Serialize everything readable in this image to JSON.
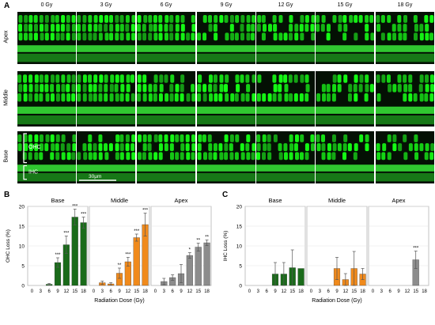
{
  "figure": {
    "panel_a_letter": "A",
    "panel_b_letter": "B",
    "panel_c_letter": "C",
    "dose_columns": [
      "0 Gy",
      "3 Gy",
      "6 Gy",
      "9 Gy",
      "12 Gy",
      "15 Gy",
      "18 Gy"
    ],
    "regions": [
      "Apex",
      "Middle",
      "Base"
    ],
    "ohc_label": "OHC",
    "ihc_label": "IHC",
    "scale_bar_label": "30μm",
    "colors": {
      "base": "#1a6b1a",
      "middle": "#f08a1c",
      "apex": "#8c8c8c",
      "micro_bright": "#38e838",
      "micro_dark": "#062006"
    }
  },
  "chart_data": [
    {
      "type": "bar",
      "panel": "B",
      "ylabel": "OHC Loss (%)",
      "xlabel": "Radiation Dose (Gy)",
      "ylim": [
        0,
        20
      ],
      "yticks": [
        0,
        5,
        10,
        15,
        20
      ],
      "categories": [
        "0",
        "3",
        "6",
        "9",
        "12",
        "15",
        "18"
      ],
      "series": [
        {
          "name": "Base",
          "color": "#1a6b1a",
          "values": [
            0,
            0,
            0.3,
            5.8,
            10.3,
            17.3,
            15.9
          ],
          "errors": [
            0,
            0,
            0.2,
            1.2,
            2.2,
            2.0,
            1.4
          ],
          "sig": [
            "",
            "",
            "",
            "***",
            "***",
            "***",
            "***"
          ]
        },
        {
          "name": "Middle",
          "color": "#f08a1c",
          "values": [
            0,
            0.7,
            0.4,
            3.1,
            6.0,
            12.1,
            15.4
          ],
          "errors": [
            0,
            0.4,
            0.3,
            1.3,
            1.1,
            0.9,
            2.9
          ],
          "sig": [
            "",
            "",
            "",
            "**",
            "***",
            "***",
            "***"
          ]
        },
        {
          "name": "Apex",
          "color": "#8c8c8c",
          "values": [
            0,
            1.0,
            2.0,
            3.0,
            7.6,
            9.7,
            10.8
          ],
          "errors": [
            0,
            0.8,
            0.7,
            2.3,
            0.7,
            1.0,
            0.7
          ],
          "sig": [
            "",
            "",
            "",
            "",
            "*",
            "**",
            "**"
          ]
        }
      ]
    },
    {
      "type": "bar",
      "panel": "C",
      "ylabel": "IHC Loss (%)",
      "xlabel": "Radiation Dose (Gy)",
      "ylim": [
        0,
        20
      ],
      "yticks": [
        0,
        5,
        10,
        15,
        20
      ],
      "categories": [
        "0",
        "3",
        "6",
        "9",
        "12",
        "15",
        "18"
      ],
      "series": [
        {
          "name": "Base",
          "color": "#1a6b1a",
          "values": [
            0,
            0,
            0,
            2.9,
            2.9,
            4.5,
            4.3
          ],
          "errors": [
            0,
            0,
            0,
            2.9,
            2.9,
            4.5,
            0
          ],
          "sig": [
            "",
            "",
            "",
            "",
            "",
            "",
            ""
          ]
        },
        {
          "name": "Middle",
          "color": "#f08a1c",
          "values": [
            0,
            0,
            0,
            4.3,
            1.5,
            4.3,
            2.9
          ],
          "errors": [
            0,
            0,
            0,
            2.8,
            1.5,
            4.3,
            1.4
          ],
          "sig": [
            "",
            "",
            "",
            "",
            "",
            "",
            ""
          ]
        },
        {
          "name": "Apex",
          "color": "#8c8c8c",
          "values": [
            0,
            0,
            0,
            0,
            0,
            6.5,
            0
          ],
          "errors": [
            0,
            0,
            0,
            0,
            0,
            2.2,
            0
          ],
          "sig": [
            "",
            "",
            "",
            "",
            "",
            "***",
            ""
          ]
        }
      ]
    }
  ]
}
